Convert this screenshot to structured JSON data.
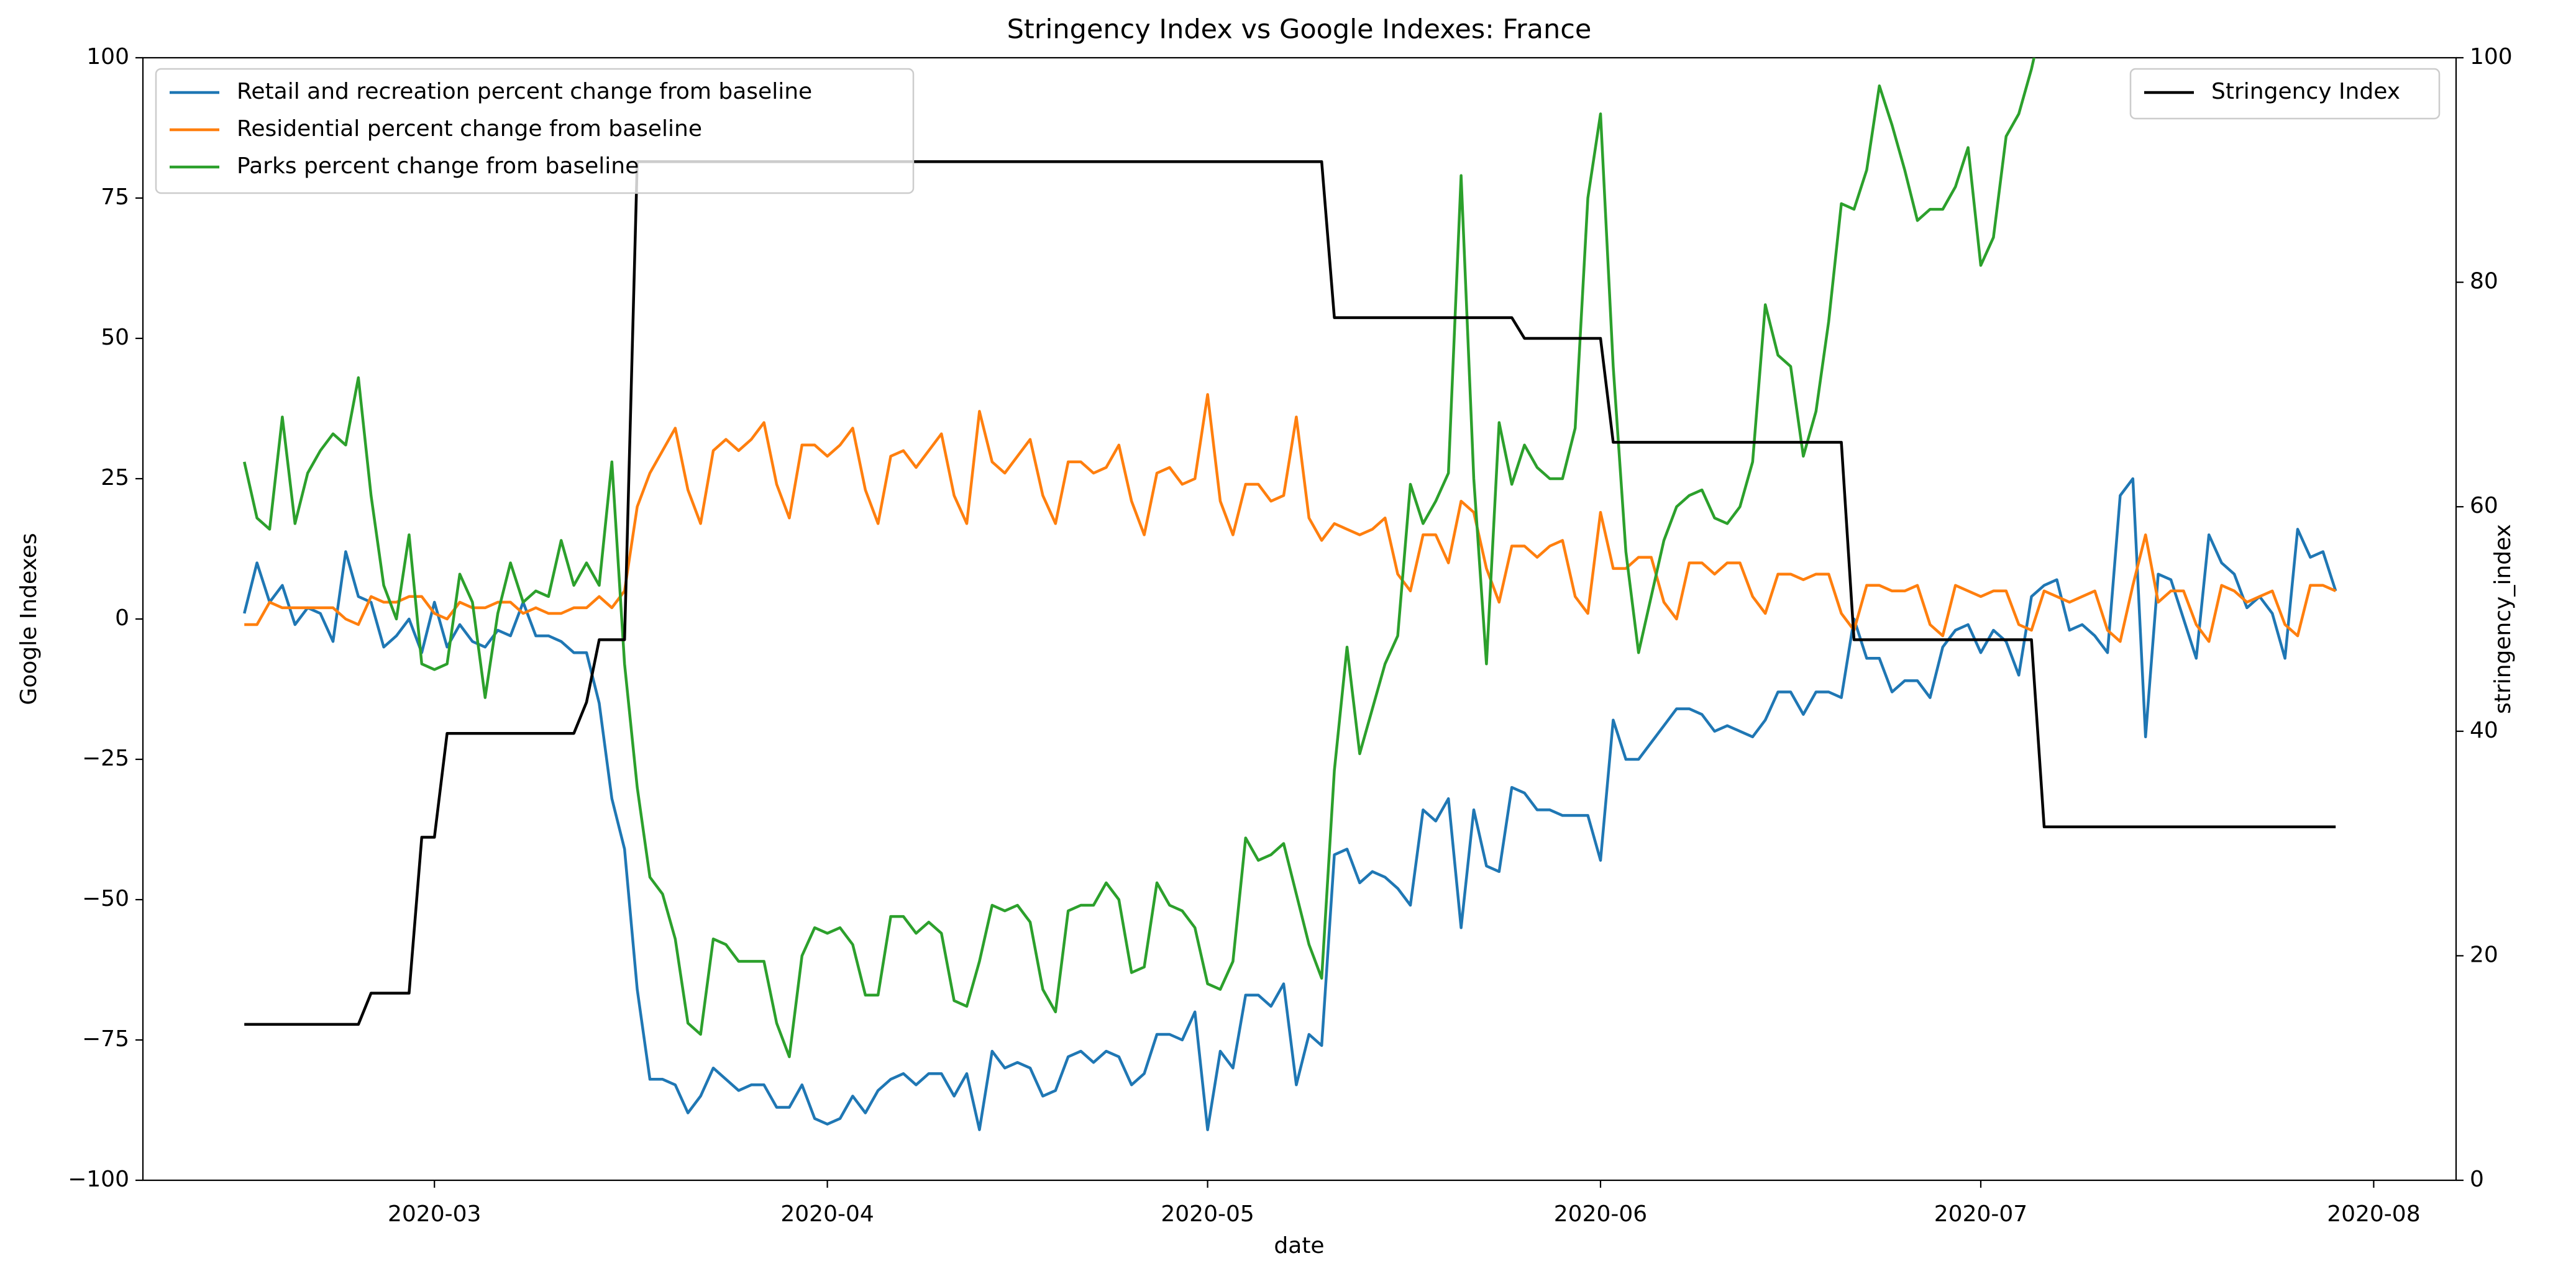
{
  "chart_data": {
    "type": "line",
    "title": "Stringency Index vs Google Indexes:  France",
    "x_label": "date",
    "y_label": "Google Indexes",
    "y2_label": "stringency_index",
    "legend_loc": "upper left",
    "legend2_loc": "upper right",
    "x": [
      45,
      46,
      47,
      48,
      49,
      50,
      51,
      52,
      53,
      54,
      55,
      56,
      57,
      58,
      59,
      60,
      61,
      62,
      63,
      64,
      65,
      66,
      67,
      68,
      69,
      70,
      71,
      72,
      73,
      74,
      75,
      76,
      77,
      78,
      79,
      80,
      81,
      82,
      83,
      84,
      85,
      86,
      87,
      88,
      89,
      90,
      91,
      92,
      93,
      94,
      95,
      96,
      97,
      98,
      99,
      100,
      101,
      102,
      103,
      104,
      105,
      106,
      107,
      108,
      109,
      110,
      111,
      112,
      113,
      114,
      115,
      116,
      117,
      118,
      119,
      120,
      121,
      122,
      123,
      124,
      125,
      126,
      127,
      128,
      129,
      130,
      131,
      132,
      133,
      134,
      135,
      136,
      137,
      138,
      139,
      140,
      141,
      142,
      143,
      144,
      145,
      146,
      147,
      148,
      149,
      150,
      151,
      152,
      153,
      154,
      155,
      156,
      157,
      158,
      159,
      160,
      161,
      162,
      163,
      164,
      165,
      166,
      167,
      168,
      169,
      170,
      171,
      172,
      173,
      174,
      175,
      176,
      177,
      178,
      179,
      180,
      181,
      182,
      183,
      184,
      185,
      186,
      187,
      188,
      189,
      190,
      191,
      192,
      193,
      194,
      195,
      196,
      197,
      198,
      199,
      200,
      201,
      202,
      203,
      204,
      205,
      206,
      207,
      208,
      209,
      210
    ],
    "xlim": [
      37,
      219.5
    ],
    "xticks": [
      {
        "value": 60,
        "label": "2020-03"
      },
      {
        "value": 91,
        "label": "2020-04"
      },
      {
        "value": 121,
        "label": "2020-05"
      },
      {
        "value": 152,
        "label": "2020-06"
      },
      {
        "value": 182,
        "label": "2020-07"
      },
      {
        "value": 213,
        "label": "2020-08"
      }
    ],
    "ylim": [
      -100,
      100
    ],
    "yticks": [
      {
        "value": -100,
        "label": "−100"
      },
      {
        "value": -75,
        "label": "−75"
      },
      {
        "value": -50,
        "label": "−50"
      },
      {
        "value": -25,
        "label": "−25"
      },
      0,
      25,
      50,
      75,
      100
    ],
    "y2lim": [
      0,
      100
    ],
    "y2ticks": [
      0,
      20,
      40,
      60,
      80,
      100
    ],
    "series": [
      {
        "name": "Retail and recreation percent change from baseline",
        "color": "#1f77b4",
        "values": [
          1,
          10,
          3,
          6,
          -1,
          2,
          1,
          -4,
          12,
          4,
          3,
          -5,
          -3,
          0,
          -6,
          3,
          -5,
          -1,
          -4,
          -5,
          -2,
          -3,
          3,
          -3,
          -3,
          -4,
          -6,
          -6,
          -15,
          -32,
          -41,
          -66,
          -82,
          -82,
          -83,
          -88,
          -85,
          -80,
          -82,
          -84,
          -83,
          -83,
          -87,
          -87,
          -83,
          -89,
          -90,
          -89,
          -85,
          -88,
          -84,
          -82,
          -81,
          -83,
          -81,
          -81,
          -85,
          -81,
          -91,
          -77,
          -80,
          -79,
          -80,
          -85,
          -84,
          -78,
          -77,
          -79,
          -77,
          -78,
          -83,
          -81,
          -74,
          -74,
          -75,
          -70,
          -91,
          -77,
          -80,
          -67,
          -67,
          -69,
          -65,
          -83,
          -74,
          -76,
          -42,
          -41,
          -47,
          -45,
          -46,
          -48,
          -51,
          -34,
          -36,
          -32,
          -55,
          -34,
          -44,
          -45,
          -30,
          -31,
          -34,
          -34,
          -35,
          -35,
          -35,
          -43,
          -18,
          -25,
          -25,
          -22,
          -19,
          -16,
          -16,
          -17,
          -20,
          -19,
          -20,
          -21,
          -18,
          -13,
          -13,
          -17,
          -13,
          -13,
          -14,
          0,
          -7,
          -7,
          -13,
          -11,
          -11,
          -14,
          -5,
          -2,
          -1,
          -6,
          -2,
          -4,
          -10,
          4,
          6,
          7,
          -2,
          -1,
          -3,
          -6,
          22,
          25,
          -21,
          8,
          7,
          0,
          -7,
          15,
          10,
          8,
          2,
          4,
          1,
          -7,
          16,
          11,
          12,
          5
        ]
      },
      {
        "name": "Residential percent change from baseline",
        "color": "#ff7f0e",
        "values": [
          -1,
          -1,
          3,
          2,
          2,
          2,
          2,
          2,
          0,
          -1,
          4,
          3,
          3,
          4,
          4,
          1,
          0,
          3,
          2,
          2,
          3,
          3,
          1,
          2,
          1,
          1,
          2,
          2,
          4,
          2,
          5,
          20,
          26,
          30,
          34,
          23,
          17,
          30,
          32,
          30,
          32,
          35,
          24,
          18,
          31,
          31,
          29,
          31,
          34,
          23,
          17,
          29,
          30,
          27,
          30,
          33,
          22,
          17,
          37,
          28,
          26,
          29,
          32,
          22,
          17,
          28,
          28,
          26,
          27,
          31,
          21,
          15,
          26,
          27,
          24,
          25,
          40,
          21,
          15,
          24,
          24,
          21,
          22,
          36,
          18,
          14,
          17,
          16,
          15,
          16,
          18,
          8,
          5,
          15,
          15,
          10,
          21,
          19,
          9,
          3,
          13,
          13,
          11,
          13,
          14,
          4,
          1,
          19,
          9,
          9,
          11,
          11,
          3,
          0,
          10,
          10,
          8,
          10,
          10,
          4,
          1,
          8,
          8,
          7,
          8,
          8,
          1,
          -2,
          6,
          6,
          5,
          5,
          6,
          -1,
          -3,
          6,
          5,
          4,
          5,
          5,
          -1,
          -2,
          5,
          4,
          3,
          4,
          5,
          -2,
          -4,
          6,
          15,
          3,
          5,
          5,
          -1,
          -4,
          6,
          5,
          3,
          4,
          5,
          -1,
          -3,
          6,
          6,
          5
        ]
      },
      {
        "name": "Parks percent change from baseline",
        "color": "#2ca02c",
        "values": [
          28,
          18,
          16,
          36,
          17,
          26,
          30,
          33,
          31,
          43,
          22,
          6,
          0,
          15,
          -8,
          -9,
          -8,
          8,
          3,
          -14,
          1,
          10,
          3,
          5,
          4,
          14,
          6,
          10,
          6,
          28,
          -8,
          -30,
          -46,
          -49,
          -57,
          -72,
          -74,
          -57,
          -58,
          -61,
          -61,
          -61,
          -72,
          -78,
          -60,
          -55,
          -56,
          -55,
          -58,
          -67,
          -67,
          -53,
          -53,
          -56,
          -54,
          -56,
          -68,
          -69,
          -61,
          -51,
          -52,
          -51,
          -54,
          -66,
          -70,
          -52,
          -51,
          -51,
          -47,
          -50,
          -63,
          -62,
          -47,
          -51,
          -52,
          -55,
          -65,
          -66,
          -61,
          -39,
          -43,
          -42,
          -40,
          -49,
          -58,
          -64,
          -27,
          -5,
          -24,
          -16,
          -8,
          -3,
          24,
          17,
          21,
          26,
          79,
          25,
          -8,
          35,
          24,
          31,
          27,
          25,
          25,
          34,
          75,
          90,
          45,
          12,
          -6,
          4,
          14,
          20,
          22,
          23,
          18,
          17,
          20,
          28,
          56,
          47,
          45,
          29,
          37,
          53,
          74,
          73,
          80,
          95,
          88,
          80,
          71,
          73,
          73,
          77,
          84,
          63,
          68,
          86,
          90,
          98,
          108,
          null,
          null,
          null,
          null,
          null,
          null,
          null,
          null,
          null,
          null,
          null,
          null,
          null,
          null,
          null,
          null,
          null,
          null,
          null,
          null,
          null,
          null,
          null
        ]
      },
      {
        "name": "Stringency Index",
        "color": "#000000",
        "axis": "y2",
        "values": [
          13.89,
          13.89,
          13.89,
          13.89,
          13.89,
          13.89,
          13.89,
          13.89,
          13.89,
          13.89,
          16.67,
          16.67,
          16.67,
          16.67,
          30.56,
          30.56,
          39.81,
          39.81,
          39.81,
          39.81,
          39.81,
          39.81,
          39.81,
          39.81,
          39.81,
          39.81,
          39.81,
          42.59,
          48.15,
          48.15,
          48.15,
          90.74,
          90.74,
          90.74,
          90.74,
          90.74,
          90.74,
          90.74,
          90.74,
          90.74,
          90.74,
          90.74,
          90.74,
          90.74,
          90.74,
          90.74,
          90.74,
          90.74,
          90.74,
          90.74,
          90.74,
          90.74,
          90.74,
          90.74,
          90.74,
          90.74,
          90.74,
          90.74,
          90.74,
          90.74,
          90.74,
          90.74,
          90.74,
          90.74,
          90.74,
          90.74,
          90.74,
          90.74,
          90.74,
          90.74,
          90.74,
          90.74,
          90.74,
          90.74,
          90.74,
          90.74,
          90.74,
          90.74,
          90.74,
          90.74,
          90.74,
          90.74,
          90.74,
          90.74,
          90.74,
          90.74,
          76.85,
          76.85,
          76.85,
          76.85,
          76.85,
          76.85,
          76.85,
          76.85,
          76.85,
          76.85,
          76.85,
          76.85,
          76.85,
          76.85,
          76.85,
          75,
          75,
          75,
          75,
          75,
          75,
          75,
          65.74,
          65.74,
          65.74,
          65.74,
          65.74,
          65.74,
          65.74,
          65.74,
          65.74,
          65.74,
          65.74,
          65.74,
          65.74,
          65.74,
          65.74,
          65.74,
          65.74,
          65.74,
          65.74,
          48.15,
          48.15,
          48.15,
          48.15,
          48.15,
          48.15,
          48.15,
          48.15,
          48.15,
          48.15,
          48.15,
          48.15,
          48.15,
          48.15,
          48.15,
          31.48,
          31.48,
          31.48,
          31.48,
          31.48,
          31.48,
          31.48,
          31.48,
          31.48,
          31.48,
          31.48,
          31.48,
          31.48,
          31.48,
          31.48,
          31.48,
          31.48,
          31.48,
          31.48,
          31.48,
          31.48,
          31.48,
          31.48,
          31.48
        ]
      }
    ]
  }
}
